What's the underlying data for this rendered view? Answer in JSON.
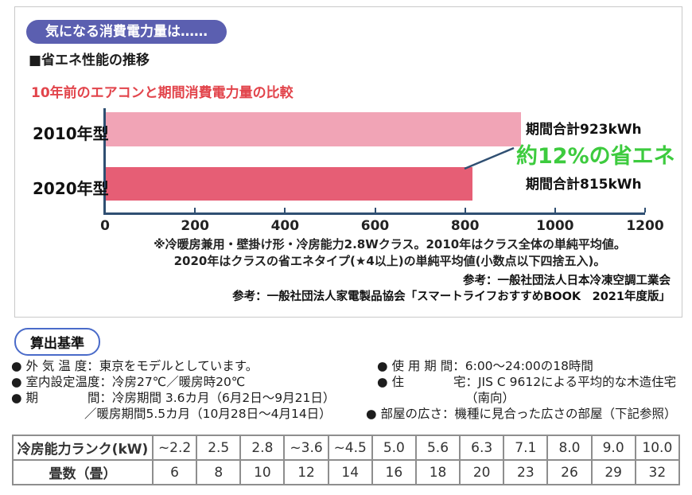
{
  "badge": "気になる消費電力量は……",
  "section_heading": "■省エネ性能の推移",
  "chart_data": {
    "type": "bar",
    "orientation": "horizontal",
    "title": "10年前のエアコンと期間消費電力量の比較",
    "categories": [
      "2010年型",
      "2020年型"
    ],
    "values": [
      923,
      815
    ],
    "value_unit": "kWh",
    "bar_labels": [
      "期間合計923kWh",
      "期間合計815kWh"
    ],
    "annotation": "約12%の省エネ",
    "annotation_color": "#3dcb3e",
    "xlim": [
      0,
      1200
    ],
    "x_ticks": [
      0,
      200,
      400,
      600,
      800,
      1000,
      1200
    ],
    "bar_colors": [
      "#f1a4b6",
      "#e65e75"
    ],
    "axis_color": "#2f4f72",
    "legend": "none",
    "grid": false
  },
  "footnotes": [
    "※冷暖房兼用・壁掛け形・冷房能力2.8Wクラス。2010年はクラス全体の単純平均値。",
    "2020年はクラスの省エネタイプ(★4以上)の単純平均値(小数点以下四捨五入)。"
  ],
  "references": [
    "参考：一般社団法人日本冷凍空調工業会",
    "参考：一般社団法人家電製品協会「スマートライフおすすめBOOK　2021年度版」"
  ],
  "criteria": {
    "title": "算出基準",
    "left": [
      "● 外 気 温 度：東京をモデルとしています。",
      "● 室内設定温度：冷房27℃／暖房時20℃",
      "● 期　　　　間：冷房期間 3.6カ月（6月2日～9月21日）",
      "／暖房期間5.5カ月（10月28日～4月14日）"
    ],
    "right": [
      "● 使 用 期 間：6:00～24:00の18時間",
      "● 住　　　　宅：JIS C 9612による平均的な木造住宅",
      "（南向）",
      "● 部屋の広さ：機種に見合った広さの部屋（下記参照）"
    ]
  },
  "table": {
    "rows": [
      {
        "label": "冷房能力ランク(kW)",
        "cells": [
          "~2.2",
          "2.5",
          "2.8",
          "~3.6",
          "~4.5",
          "5.0",
          "5.6",
          "6.3",
          "7.1",
          "8.0",
          "9.0",
          "10.0"
        ]
      },
      {
        "label": "畳数（畳）",
        "cells": [
          "6",
          "8",
          "10",
          "12",
          "14",
          "16",
          "18",
          "20",
          "23",
          "26",
          "29",
          "32"
        ]
      }
    ]
  }
}
